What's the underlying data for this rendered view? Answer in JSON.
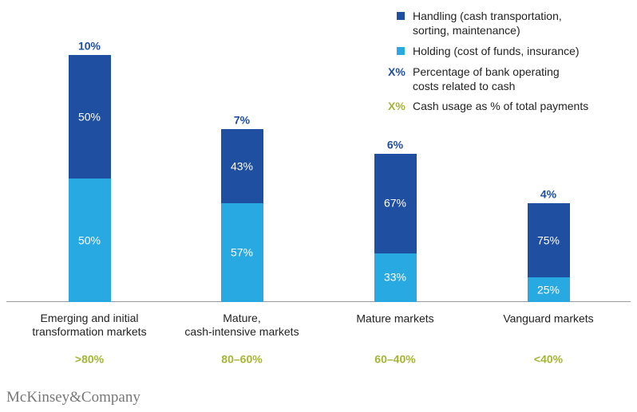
{
  "chart_data": {
    "type": "stacked_bar",
    "categories": [
      "Emerging and initial\ntransformation markets",
      "Mature,\ncash-intensive markets",
      "Mature markets",
      "Vanguard markets"
    ],
    "series": [
      {
        "name": "Handling (cash transportation,\nsorting, maintenance)",
        "color": "#1f4fa0",
        "values": [
          50,
          43,
          67,
          75
        ],
        "value_labels": [
          "50%",
          "43%",
          "67%",
          "75%"
        ]
      },
      {
        "name": "Holding (cost of funds, insurance)",
        "color": "#29a9e1",
        "values": [
          50,
          57,
          33,
          25
        ],
        "value_labels": [
          "50%",
          "57%",
          "33%",
          "25%"
        ]
      }
    ],
    "totals": {
      "symbol": "X%",
      "name": "Percentage of bank operating\ncosts related to cash",
      "color": "#1f4fa0",
      "values": [
        10,
        7,
        6,
        4
      ],
      "value_labels": [
        "10%",
        "7%",
        "6%",
        "4%"
      ]
    },
    "cash_usage": {
      "symbol": "X%",
      "name": "Cash usage as % of total payments",
      "color": "#a4b534",
      "labels": [
        ">80%",
        "80–60%",
        "60–40%",
        "<40%"
      ]
    },
    "source": "McKinsey&Company"
  }
}
